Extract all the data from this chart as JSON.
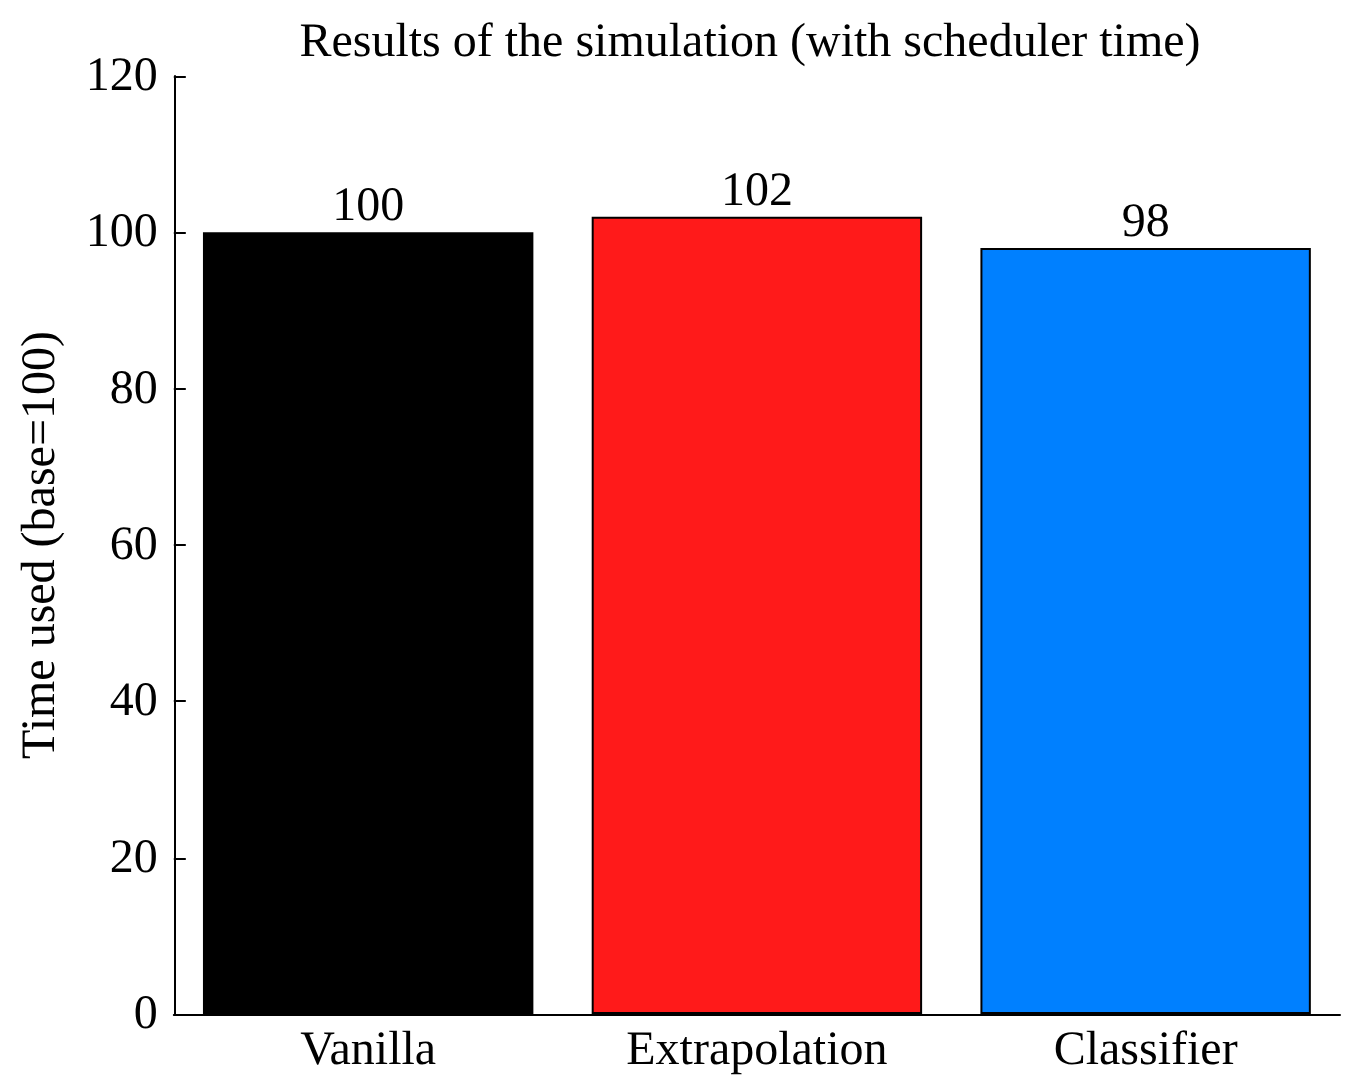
{
  "chart_data": {
    "type": "bar",
    "title": "Results of the simulation (with scheduler time)",
    "ylabel": "Time used (base=100)",
    "categories": [
      "Vanilla",
      "Extrapolation",
      "Classifier"
    ],
    "values": [
      100,
      102,
      98
    ],
    "colors": [
      "#000000",
      "#ff1a1a",
      "#0080ff"
    ],
    "ylim": [
      0,
      120
    ],
    "yticks": [
      0,
      20,
      40,
      60,
      80,
      100,
      120
    ],
    "grid": false,
    "data_labels": true
  }
}
